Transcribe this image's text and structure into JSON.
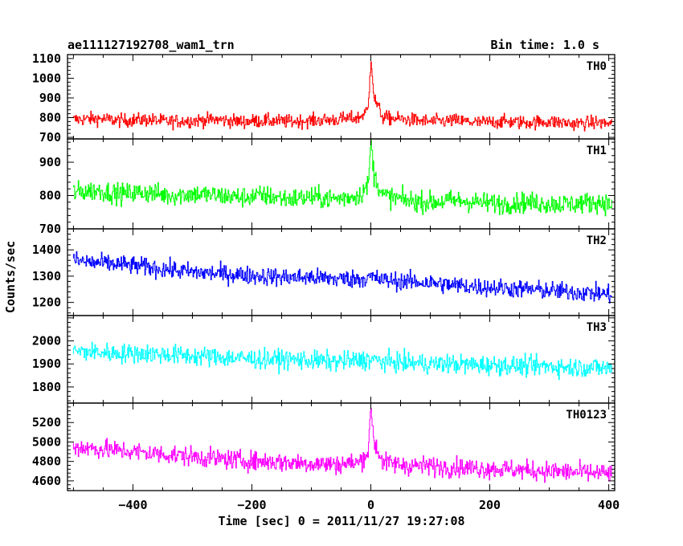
{
  "header": {
    "title": "ae111127192708_wam1_trn",
    "bin_time": "Bin time: 1.0 s"
  },
  "axes": {
    "ylabel": "Counts/sec",
    "xlabel": "Time [sec] 0 = 2011/11/27 19:27:08"
  },
  "chart_data": [
    {
      "type": "line",
      "name": "TH0",
      "color": "#ff0000",
      "xlim": [
        -510,
        410
      ],
      "ylim": [
        692,
        1120
      ],
      "yticks": [
        700,
        800,
        900,
        1000,
        1100
      ],
      "xticks": [
        -400,
        -200,
        0,
        200,
        400
      ],
      "x": [
        -500,
        -460,
        -420,
        -380,
        -340,
        -300,
        -260,
        -220,
        -180,
        -140,
        -100,
        -60,
        -20,
        -5,
        0,
        5,
        20,
        60,
        100,
        140,
        180,
        220,
        260,
        300,
        340,
        380,
        400
      ],
      "y": [
        790,
        795,
        785,
        790,
        780,
        785,
        790,
        780,
        785,
        780,
        785,
        790,
        800,
        840,
        1110,
        900,
        800,
        790,
        780,
        785,
        775,
        780,
        775,
        780,
        770,
        775,
        770
      ]
    },
    {
      "type": "line",
      "name": "TH1",
      "color": "#00ff00",
      "xlim": [
        -510,
        410
      ],
      "ylim": [
        700,
        970
      ],
      "yticks": [
        700,
        800,
        900
      ],
      "xticks": [
        -400,
        -200,
        0,
        200,
        400
      ],
      "x": [
        -500,
        -460,
        -420,
        -380,
        -340,
        -300,
        -260,
        -220,
        -180,
        -140,
        -100,
        -60,
        -20,
        -5,
        0,
        5,
        20,
        60,
        100,
        140,
        180,
        220,
        260,
        300,
        340,
        380,
        400
      ],
      "y": [
        810,
        815,
        805,
        810,
        800,
        805,
        800,
        795,
        800,
        790,
        795,
        790,
        800,
        830,
        960,
        860,
        800,
        785,
        780,
        785,
        780,
        775,
        780,
        775,
        775,
        780,
        775
      ]
    },
    {
      "type": "line",
      "name": "TH2",
      "color": "#0000ff",
      "xlim": [
        -510,
        410
      ],
      "ylim": [
        1150,
        1480
      ],
      "yticks": [
        1200,
        1300,
        1400
      ],
      "xticks": [
        -400,
        -200,
        0,
        200,
        400
      ],
      "x": [
        -500,
        -460,
        -420,
        -380,
        -340,
        -300,
        -260,
        -220,
        -180,
        -140,
        -100,
        -60,
        -20,
        0,
        20,
        60,
        100,
        140,
        180,
        220,
        260,
        300,
        340,
        380,
        400
      ],
      "y": [
        1360,
        1350,
        1345,
        1335,
        1325,
        1315,
        1310,
        1305,
        1300,
        1295,
        1295,
        1290,
        1290,
        1295,
        1285,
        1280,
        1275,
        1265,
        1260,
        1255,
        1250,
        1245,
        1240,
        1235,
        1230
      ]
    },
    {
      "type": "line",
      "name": "TH3",
      "color": "#00ffff",
      "xlim": [
        -510,
        410
      ],
      "ylim": [
        1730,
        2110
      ],
      "yticks": [
        1800,
        1900,
        2000
      ],
      "xticks": [
        -400,
        -200,
        0,
        200,
        400
      ],
      "x": [
        -500,
        -460,
        -420,
        -380,
        -340,
        -300,
        -260,
        -220,
        -180,
        -140,
        -100,
        -60,
        -20,
        0,
        20,
        60,
        100,
        140,
        180,
        220,
        260,
        300,
        340,
        380,
        400
      ],
      "y": [
        1955,
        1950,
        1945,
        1945,
        1940,
        1935,
        1930,
        1925,
        1920,
        1920,
        1915,
        1910,
        1915,
        1920,
        1910,
        1905,
        1900,
        1900,
        1895,
        1895,
        1890,
        1890,
        1885,
        1885,
        1880
      ]
    },
    {
      "type": "line",
      "name": "TH0123",
      "color": "#ff00ff",
      "xlim": [
        -510,
        410
      ],
      "ylim": [
        4500,
        5400
      ],
      "yticks": [
        4600,
        4800,
        5000,
        5200
      ],
      "xticks": [
        -400,
        -200,
        0,
        200,
        400
      ],
      "x": [
        -500,
        -460,
        -420,
        -380,
        -340,
        -300,
        -260,
        -220,
        -180,
        -140,
        -100,
        -60,
        -20,
        -5,
        0,
        5,
        20,
        60,
        100,
        140,
        180,
        220,
        260,
        300,
        340,
        380,
        400
      ],
      "y": [
        4950,
        4930,
        4910,
        4890,
        4870,
        4850,
        4830,
        4810,
        4800,
        4790,
        4780,
        4770,
        4790,
        4900,
        5350,
        5000,
        4790,
        4760,
        4750,
        4740,
        4730,
        4720,
        4710,
        4700,
        4690,
        4680,
        4670
      ]
    }
  ],
  "noise": [
    45,
    40,
    45,
    55,
    130
  ],
  "xtick_labels": [
    "−400",
    "−200",
    "0",
    "200",
    "400"
  ]
}
